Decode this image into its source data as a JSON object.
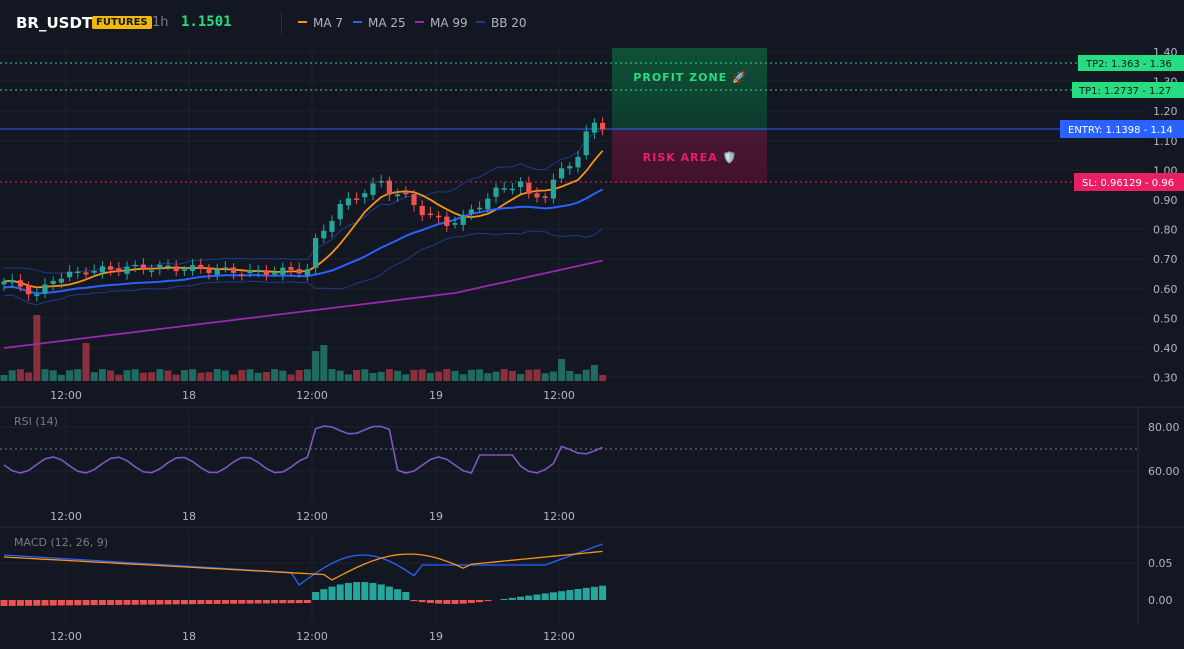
{
  "header": {
    "symbol": "BR_USDT",
    "badge": "FUTURES",
    "timeframe": "1h",
    "last_price": "1.1501",
    "indicators": [
      {
        "label": "MA 7",
        "color": "#f7931a"
      },
      {
        "label": "MA 25",
        "color": "#2962ff"
      },
      {
        "label": "MA 99",
        "color": "#9c27b0"
      },
      {
        "label": "BB 20",
        "color": "#1e3a8a"
      }
    ]
  },
  "price_axis": [
    "1.40",
    "1.30",
    "1.20",
    "1.10",
    "1.00",
    "0.90",
    "0.80",
    "0.70",
    "0.60",
    "0.50",
    "0.40",
    "0.30"
  ],
  "x_axis": [
    "12:00",
    "18",
    "12:00",
    "19",
    "12:00"
  ],
  "levels": {
    "tp2": "TP2: 1.363 - 1.36",
    "tp1": "TP1: 1.2737 - 1.27",
    "entry": "ENTRY: 1.1398 - 1.14",
    "sl": "SL: 0.96129 - 0.96"
  },
  "zones": {
    "profit": "PROFIT ZONE 🚀",
    "risk": "RISK AREA 🛡️"
  },
  "rsi": {
    "title": "RSI (14)",
    "axis": [
      "80.00",
      "60.00"
    ]
  },
  "macd": {
    "title": "MACD (12, 26, 9)",
    "axis": [
      "0.05",
      "0.00"
    ]
  },
  "colors": {
    "up": "#26a69a",
    "down": "#ef5350",
    "rsi": "#7e57c2",
    "tp": "#26de81",
    "entry": "#2962ff",
    "sl": "#e91e63"
  }
}
